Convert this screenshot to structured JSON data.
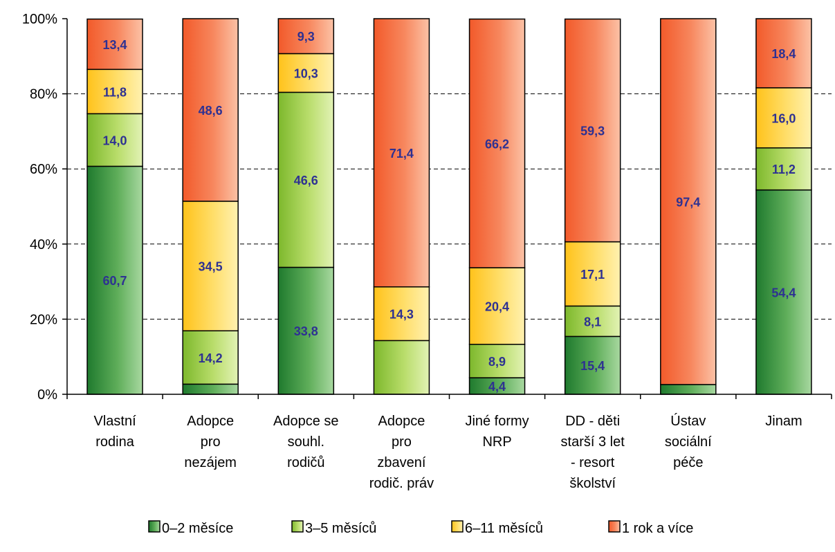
{
  "chart_data": {
    "type": "bar",
    "stacked": true,
    "percent": true,
    "title": "",
    "xlabel": "",
    "ylabel": "",
    "ylim": [
      0,
      100
    ],
    "yticks": [
      "0%",
      "20%",
      "40%",
      "60%",
      "80%",
      "100%"
    ],
    "grid": true,
    "legend_position": "bottom",
    "categories": [
      [
        "Vlastní",
        "rodina"
      ],
      [
        "Adopce",
        "pro",
        "nezájem"
      ],
      [
        "Adopce se",
        "souhl.",
        "rodičů"
      ],
      [
        "Adopce",
        "pro",
        "zbavení",
        "rodič. práv"
      ],
      [
        "Jiné formy",
        "NRP"
      ],
      [
        "DD - děti",
        "starší 3 let",
        "- resort",
        "školství"
      ],
      [
        "Ústav",
        "sociální",
        "péče"
      ],
      [
        "Jinam"
      ]
    ],
    "series": [
      {
        "name": "0–2 měsíce",
        "color": "#2E8B3A",
        "values": [
          60.7,
          2.7,
          33.8,
          0.0,
          4.4,
          15.4,
          2.6,
          54.4
        ],
        "labels": [
          "60,7",
          "",
          "33,8",
          "",
          "4,4",
          "15,4",
          "",
          "54,4"
        ]
      },
      {
        "name": "3–5 měsíců",
        "color": "#9BCB3C",
        "values": [
          14.0,
          14.2,
          46.6,
          14.3,
          8.9,
          8.1,
          0.0,
          11.2
        ],
        "labels": [
          "14,0",
          "14,2",
          "46,6",
          "",
          "8,9",
          "8,1",
          "",
          "11,2"
        ]
      },
      {
        "name": "6–11 měsíců",
        "color": "#FFD23F",
        "values": [
          11.8,
          34.5,
          10.3,
          14.3,
          20.4,
          17.1,
          0.0,
          16.0
        ],
        "labels": [
          "11,8",
          "34,5",
          "10,3",
          "14,3",
          "20,4",
          "17,1",
          "",
          "16,0"
        ]
      },
      {
        "name": "1 rok a více",
        "color": "#F26B3A",
        "values": [
          13.4,
          48.6,
          9.3,
          71.4,
          66.2,
          59.3,
          97.4,
          18.4
        ],
        "labels": [
          "13,4",
          "48,6",
          "9,3",
          "71,4",
          "66,2",
          "59,3",
          "97,4",
          "18,4"
        ]
      }
    ]
  }
}
